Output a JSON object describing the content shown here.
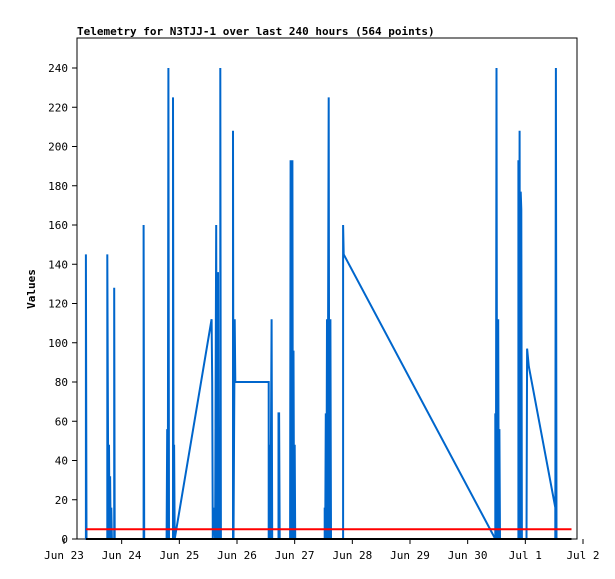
{
  "chart_data": {
    "type": "line",
    "title": "Telemetry for N3TJJ-1 over last 240 hours (564 points)",
    "xlabel": "",
    "ylabel": "Values",
    "xlim": [
      0,
      9
    ],
    "ylim": [
      0,
      255
    ],
    "x_ticks": [
      {
        "value": 0,
        "label": "Jun 23"
      },
      {
        "value": 1,
        "label": "Jun 24"
      },
      {
        "value": 2,
        "label": "Jun 25"
      },
      {
        "value": 3,
        "label": "Jun 26"
      },
      {
        "value": 4,
        "label": "Jun 27"
      },
      {
        "value": 5,
        "label": "Jun 28"
      },
      {
        "value": 6,
        "label": "Jun 29"
      },
      {
        "value": 7,
        "label": "Jun 30"
      },
      {
        "value": 8,
        "label": "Jul 1"
      },
      {
        "value": 9,
        "label": "Jul 2"
      }
    ],
    "y_ticks": [
      0,
      20,
      40,
      60,
      80,
      100,
      120,
      140,
      160,
      180,
      200,
      220,
      240
    ],
    "grid": false,
    "legend": "none",
    "series": [
      {
        "color": "#0066cc",
        "points": [
          [
            0.38,
            0
          ],
          [
            0.38,
            145
          ],
          [
            0.39,
            0
          ],
          [
            0.75,
            0
          ],
          [
            0.75,
            145
          ],
          [
            0.77,
            0
          ],
          [
            0.78,
            48
          ],
          [
            0.79,
            0
          ],
          [
            0.8,
            32
          ],
          [
            0.81,
            0
          ],
          [
            0.82,
            16
          ],
          [
            0.83,
            0
          ],
          [
            0.87,
            0
          ],
          [
            0.87,
            128
          ],
          [
            0.88,
            0
          ],
          [
            1.38,
            0
          ],
          [
            1.38,
            160
          ],
          [
            1.39,
            0
          ],
          [
            1.78,
            0
          ],
          [
            1.79,
            56
          ],
          [
            1.8,
            0
          ],
          [
            1.81,
            240
          ],
          [
            1.82,
            0
          ],
          [
            1.89,
            0
          ],
          [
            1.89,
            225
          ],
          [
            1.9,
            0
          ],
          [
            1.91,
            48
          ],
          [
            1.92,
            0
          ],
          [
            2.56,
            112
          ],
          [
            2.57,
            80
          ],
          [
            2.58,
            0
          ],
          [
            2.6,
            16
          ],
          [
            2.62,
            0
          ],
          [
            2.64,
            160
          ],
          [
            2.65,
            0
          ],
          [
            2.67,
            136
          ],
          [
            2.68,
            0
          ],
          [
            2.71,
            0
          ],
          [
            2.71,
            240
          ],
          [
            2.72,
            0
          ],
          [
            2.93,
            0
          ],
          [
            2.93,
            208
          ],
          [
            2.94,
            0
          ],
          [
            2.96,
            112
          ],
          [
            2.97,
            80
          ],
          [
            3.55,
            80
          ],
          [
            3.55,
            0
          ],
          [
            3.57,
            48
          ],
          [
            3.58,
            0
          ],
          [
            3.6,
            112
          ],
          [
            3.61,
            0
          ],
          [
            3.72,
            0
          ],
          [
            3.72,
            64
          ],
          [
            3.73,
            64
          ],
          [
            3.74,
            0
          ],
          [
            3.92,
            0
          ],
          [
            3.93,
            193
          ],
          [
            3.95,
            0
          ],
          [
            3.96,
            193
          ],
          [
            3.97,
            0
          ],
          [
            3.98,
            96
          ],
          [
            3.99,
            0
          ],
          [
            4.0,
            48
          ],
          [
            4.01,
            0
          ],
          [
            4.52,
            0
          ],
          [
            4.52,
            16
          ],
          [
            4.53,
            0
          ],
          [
            4.54,
            64
          ],
          [
            4.55,
            0
          ],
          [
            4.56,
            112
          ],
          [
            4.57,
            0
          ],
          [
            4.59,
            225
          ],
          [
            4.6,
            0
          ],
          [
            4.62,
            112
          ],
          [
            4.63,
            0
          ],
          [
            4.84,
            0
          ],
          [
            4.84,
            160
          ],
          [
            4.85,
            145
          ],
          [
            7.48,
            0
          ],
          [
            7.48,
            64
          ],
          [
            7.49,
            0
          ],
          [
            7.5,
            240
          ],
          [
            7.51,
            0
          ],
          [
            7.53,
            112
          ],
          [
            7.54,
            0
          ],
          [
            7.55,
            56
          ],
          [
            7.56,
            0
          ],
          [
            7.88,
            0
          ],
          [
            7.88,
            193
          ],
          [
            7.89,
            0
          ],
          [
            7.9,
            208
          ],
          [
            7.91,
            0
          ],
          [
            7.92,
            177
          ],
          [
            7.93,
            168
          ],
          [
            7.94,
            0
          ],
          [
            8.02,
            0
          ],
          [
            8.03,
            97
          ],
          [
            8.06,
            88
          ],
          [
            8.52,
            16
          ],
          [
            8.52,
            0
          ],
          [
            8.53,
            240
          ],
          [
            8.54,
            0
          ]
        ]
      },
      {
        "color": "#ff0000",
        "points": [
          [
            0.38,
            5
          ],
          [
            8.8,
            5
          ]
        ]
      },
      {
        "color": "#000000",
        "points": [
          [
            0.38,
            0
          ],
          [
            8.8,
            0
          ]
        ]
      }
    ]
  }
}
